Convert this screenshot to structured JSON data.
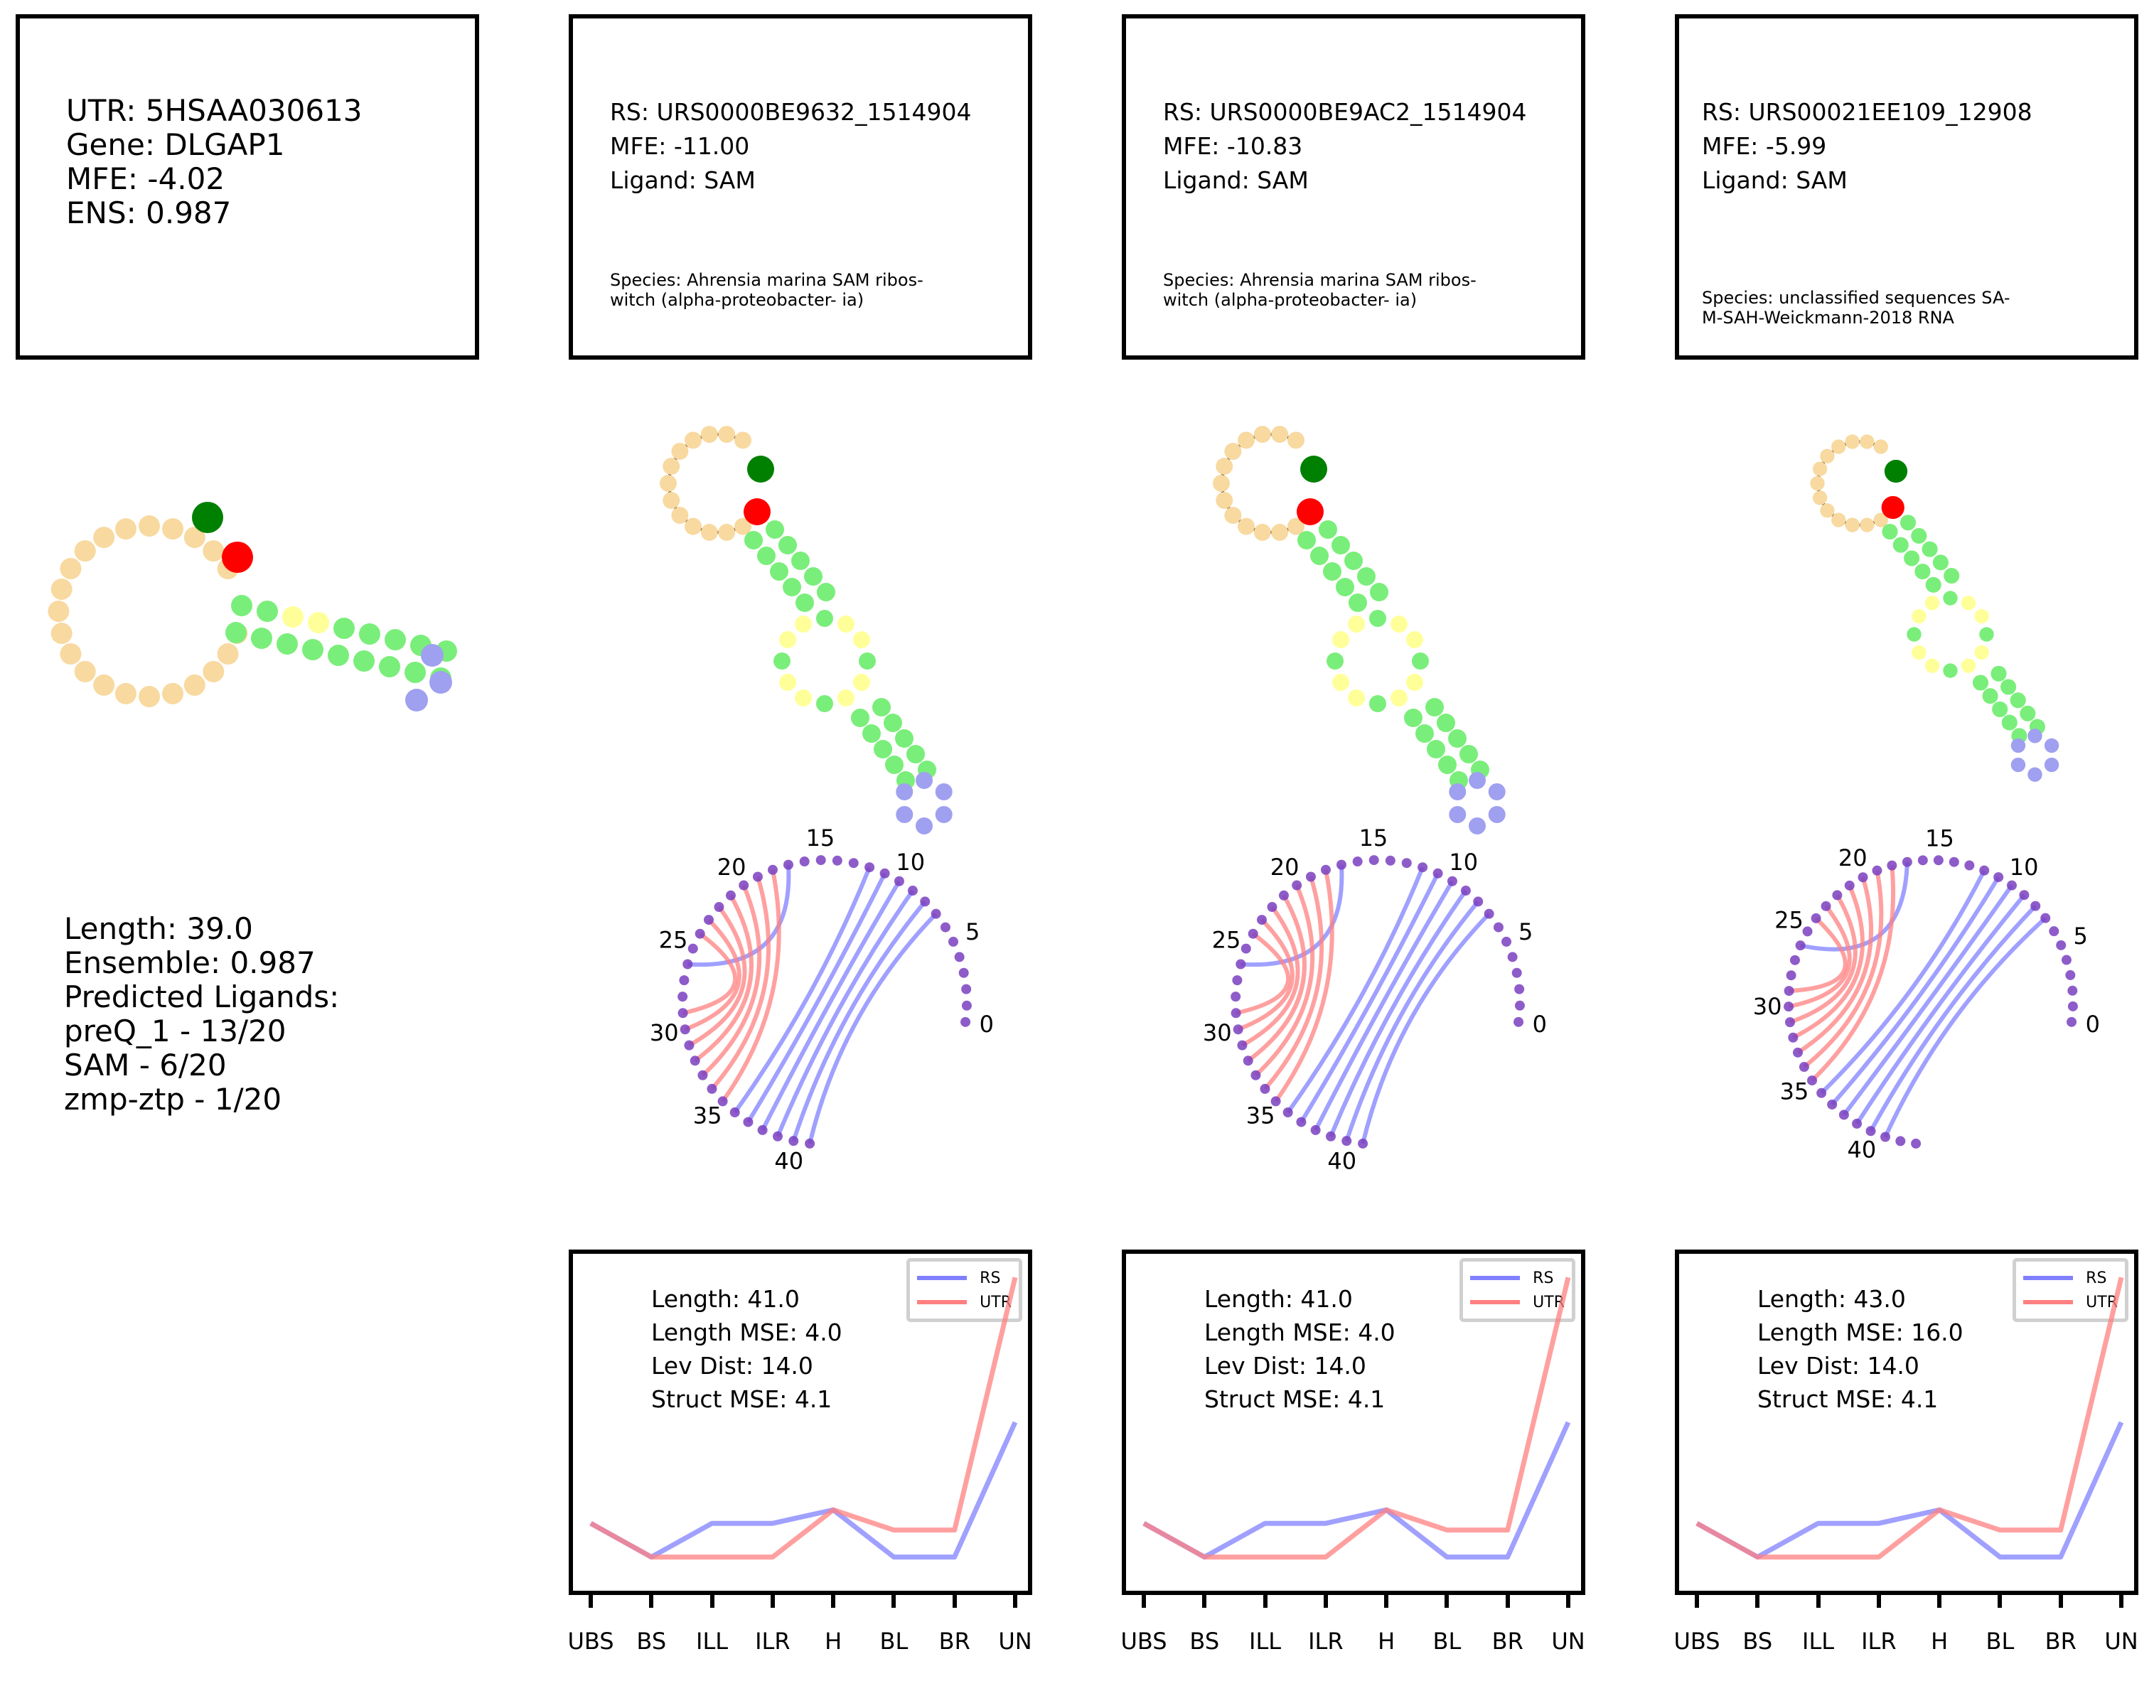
{
  "utr": {
    "utr_label": "UTR: 5HSAA030613",
    "gene_label": "Gene: DLGAP1",
    "mfe_label": "MFE: -4.02",
    "ens_label": "ENS: 0.987",
    "stats": {
      "length": "Length: 39.0",
      "ensemble": "Ensemble: 0.987",
      "predicted_header": "Predicted Ligands:",
      "ligands": [
        "preQ_1 - 13/20",
        "SAM - 6/20",
        "zmp-ztp - 1/20"
      ]
    }
  },
  "riboswitches": [
    {
      "rs_label": "RS: URS0000BE9632_1514904",
      "mfe_label": "MFE: -11.00",
      "ligand_label": "Ligand: SAM",
      "species": "Species: Ahrensia marina SAM ribos- witch (alpha-proteobacter- ia)",
      "arc_ticks": [
        "0",
        "5",
        "10",
        "15",
        "20",
        "25",
        "30",
        "35",
        "40"
      ],
      "metrics": [
        "Length: 41.0",
        "Length MSE: 4.0",
        "Lev Dist: 14.0",
        "Struct MSE: 4.1"
      ]
    },
    {
      "rs_label": "RS: URS0000BE9AC2_1514904",
      "mfe_label": "MFE: -10.83",
      "ligand_label": "Ligand: SAM",
      "species": "Species: Ahrensia marina SAM ribos- witch (alpha-proteobacter- ia)",
      "arc_ticks": [
        "0",
        "5",
        "10",
        "15",
        "20",
        "25",
        "30",
        "35",
        "40"
      ],
      "metrics": [
        "Length: 41.0",
        "Length MSE: 4.0",
        "Lev Dist: 14.0",
        "Struct MSE: 4.1"
      ]
    },
    {
      "rs_label": "RS: URS00021EE109_12908",
      "mfe_label": "MFE: -5.99",
      "ligand_label": "Ligand: SAM",
      "species": "Species: unclassified sequences SA- M-SAH-Weickmann-2018 RNA",
      "arc_ticks": [
        "0",
        "5",
        "10",
        "15",
        "20",
        "25",
        "30",
        "35",
        "40"
      ],
      "metrics": [
        "Length: 43.0",
        "Length MSE: 16.0",
        "Lev Dist: 14.0",
        "Struct MSE: 4.1"
      ]
    }
  ],
  "legend": {
    "rs": "RS",
    "utr": "UTR"
  },
  "colors": {
    "rs": "#8080ff",
    "utr": "#ff8080",
    "purple": "#7a3fc0",
    "loop": "#f8d9a0",
    "stem": "#7aee7a",
    "internal": "#ffff99",
    "hairpin": "#a0a0f0",
    "start": "#008000",
    "end": "#ff0000"
  },
  "chart_data": [
    {
      "type": "line",
      "categories": [
        "UBS",
        "BS",
        "ILL",
        "ILR",
        "H",
        "BL",
        "BR",
        "UN"
      ],
      "series": [
        {
          "name": "RS",
          "values": [
            2,
            1,
            2,
            2,
            2.4,
            1,
            1,
            5
          ]
        },
        {
          "name": "UTR",
          "values": [
            2,
            1,
            1,
            1,
            2.4,
            1.8,
            1.8,
            9.3
          ]
        }
      ]
    },
    {
      "type": "line",
      "categories": [
        "UBS",
        "BS",
        "ILL",
        "ILR",
        "H",
        "BL",
        "BR",
        "UN"
      ],
      "series": [
        {
          "name": "RS",
          "values": [
            2,
            1,
            2,
            2,
            2.4,
            1,
            1,
            5
          ]
        },
        {
          "name": "UTR",
          "values": [
            2,
            1,
            1,
            1,
            2.4,
            1.8,
            1.8,
            9.3
          ]
        }
      ]
    },
    {
      "type": "line",
      "categories": [
        "UBS",
        "BS",
        "ILL",
        "ILR",
        "H",
        "BL",
        "BR",
        "UN"
      ],
      "series": [
        {
          "name": "RS",
          "values": [
            2,
            1,
            2,
            2,
            2.4,
            1,
            1,
            5
          ]
        },
        {
          "name": "UTR",
          "values": [
            2,
            1,
            1,
            1,
            2.4,
            1.8,
            1.8,
            9.3
          ]
        }
      ]
    }
  ]
}
